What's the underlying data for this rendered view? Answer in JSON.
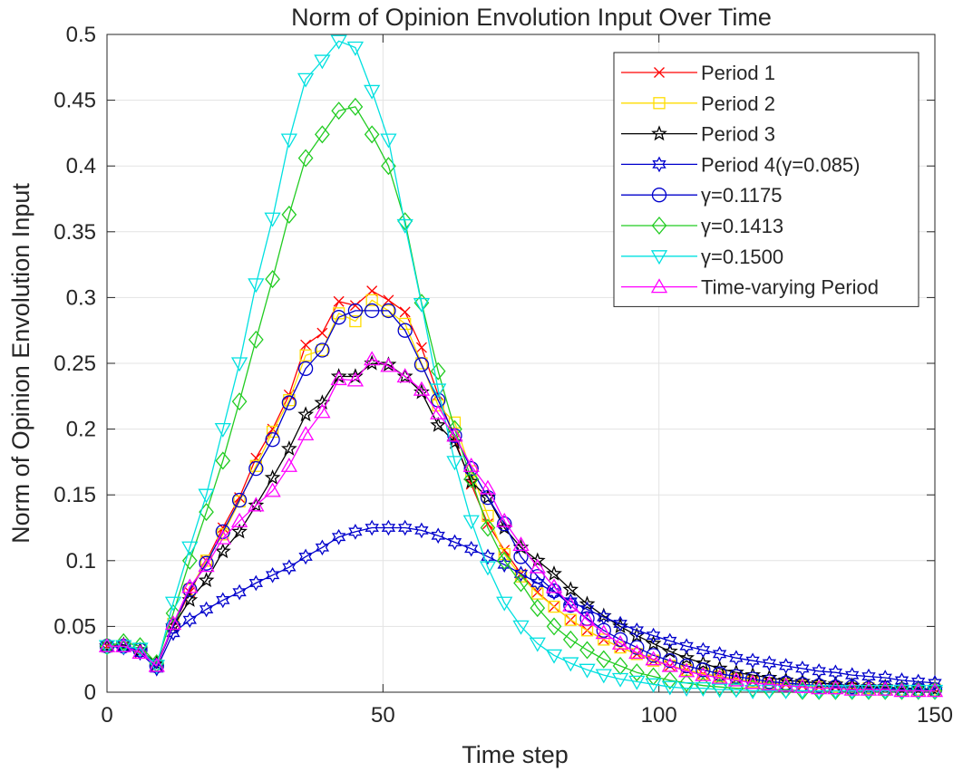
{
  "chart_data": {
    "type": "line",
    "title": "Norm of Opinion Envolution Input Over Time",
    "xlabel": "Time step",
    "ylabel": "Norm of Opinion Envolution Input",
    "xlim": [
      0,
      150
    ],
    "ylim": [
      0,
      0.5
    ],
    "xticks": [
      0,
      50,
      100,
      150
    ],
    "yticks": [
      0,
      0.05,
      0.1,
      0.15,
      0.2,
      0.25,
      0.3,
      0.35,
      0.4,
      0.45,
      0.5
    ],
    "grid": true,
    "legend_position": "top-right",
    "x_step": 3,
    "series": [
      {
        "name": "Period 1",
        "color": "#ff0000",
        "marker": "x",
        "values": [
          0.035,
          0.035,
          0.03,
          0.02,
          0.05,
          0.076,
          0.1,
          0.125,
          0.148,
          0.178,
          0.2,
          0.226,
          0.264,
          0.273,
          0.297,
          0.294,
          0.305,
          0.298,
          0.289,
          0.262,
          0.226,
          0.192,
          0.158,
          0.128,
          0.108,
          0.09,
          0.076,
          0.065,
          0.055,
          0.047,
          0.04,
          0.034,
          0.029,
          0.024,
          0.02,
          0.017,
          0.014,
          0.012,
          0.01,
          0.008,
          0.007,
          0.006,
          0.005,
          0.004,
          0.004,
          0.003,
          0.003,
          0.002,
          0.002,
          0.002,
          0.002
        ]
      },
      {
        "name": "Period 2",
        "color": "#ffdd00",
        "marker": "square",
        "values": [
          0.035,
          0.035,
          0.033,
          0.02,
          0.052,
          0.078,
          0.1,
          0.12,
          0.145,
          0.172,
          0.198,
          0.222,
          0.256,
          0.26,
          0.288,
          0.282,
          0.298,
          0.29,
          0.28,
          0.25,
          0.218,
          0.205,
          0.168,
          0.134,
          0.105,
          0.088,
          0.075,
          0.065,
          0.055,
          0.047,
          0.04,
          0.034,
          0.029,
          0.024,
          0.02,
          0.017,
          0.014,
          0.012,
          0.01,
          0.008,
          0.007,
          0.006,
          0.005,
          0.004,
          0.004,
          0.003,
          0.003,
          0.002,
          0.002,
          0.002,
          0.002
        ]
      },
      {
        "name": "Period 3",
        "color": "#000000",
        "marker": "star",
        "values": [
          0.035,
          0.036,
          0.032,
          0.022,
          0.05,
          0.07,
          0.085,
          0.107,
          0.122,
          0.142,
          0.163,
          0.185,
          0.211,
          0.22,
          0.24,
          0.24,
          0.25,
          0.249,
          0.24,
          0.228,
          0.203,
          0.19,
          0.16,
          0.148,
          0.125,
          0.11,
          0.1,
          0.09,
          0.078,
          0.067,
          0.058,
          0.05,
          0.043,
          0.037,
          0.031,
          0.026,
          0.022,
          0.018,
          0.015,
          0.013,
          0.011,
          0.009,
          0.008,
          0.007,
          0.006,
          0.005,
          0.004,
          0.004,
          0.003,
          0.003,
          0.002
        ]
      },
      {
        "name": "Period 4(γ=0.085)",
        "color": "#0000cc",
        "marker": "hexagram",
        "values": [
          0.035,
          0.034,
          0.03,
          0.018,
          0.045,
          0.055,
          0.063,
          0.07,
          0.076,
          0.083,
          0.089,
          0.095,
          0.103,
          0.11,
          0.118,
          0.122,
          0.125,
          0.125,
          0.125,
          0.123,
          0.119,
          0.114,
          0.109,
          0.103,
          0.097,
          0.09,
          0.083,
          0.076,
          0.069,
          0.063,
          0.057,
          0.052,
          0.047,
          0.043,
          0.039,
          0.035,
          0.032,
          0.029,
          0.026,
          0.024,
          0.022,
          0.02,
          0.018,
          0.016,
          0.015,
          0.013,
          0.012,
          0.011,
          0.009,
          0.008,
          0.007
        ]
      },
      {
        "name": "γ=0.1175",
        "color": "#0000cc",
        "marker": "circle",
        "values": [
          0.035,
          0.035,
          0.032,
          0.02,
          0.05,
          0.078,
          0.098,
          0.122,
          0.146,
          0.17,
          0.192,
          0.22,
          0.246,
          0.26,
          0.285,
          0.29,
          0.29,
          0.29,
          0.275,
          0.249,
          0.222,
          0.195,
          0.17,
          0.148,
          0.128,
          0.103,
          0.088,
          0.077,
          0.066,
          0.056,
          0.047,
          0.04,
          0.034,
          0.028,
          0.024,
          0.02,
          0.017,
          0.014,
          0.012,
          0.01,
          0.008,
          0.007,
          0.006,
          0.005,
          0.004,
          0.004,
          0.003,
          0.003,
          0.002,
          0.002,
          0.002
        ]
      },
      {
        "name": "γ=0.1413",
        "color": "#22cc22",
        "marker": "diamond",
        "values": [
          0.035,
          0.038,
          0.035,
          0.022,
          0.06,
          0.1,
          0.137,
          0.176,
          0.221,
          0.268,
          0.314,
          0.363,
          0.406,
          0.424,
          0.442,
          0.445,
          0.424,
          0.4,
          0.358,
          0.296,
          0.244,
          0.2,
          0.162,
          0.125,
          0.1,
          0.083,
          0.064,
          0.05,
          0.04,
          0.032,
          0.025,
          0.02,
          0.015,
          0.012,
          0.009,
          0.007,
          0.005,
          0.004,
          0.003,
          0.003,
          0.002,
          0.002,
          0.001,
          0.001,
          0.001,
          0.001,
          0.001,
          0.001,
          0.001,
          0.001,
          0.001
        ]
      },
      {
        "name": "γ=0.1500",
        "color": "#00e0e0",
        "marker": "triangle-down",
        "values": [
          0.035,
          0.035,
          0.033,
          0.02,
          0.068,
          0.11,
          0.15,
          0.2,
          0.25,
          0.31,
          0.36,
          0.42,
          0.466,
          0.48,
          0.495,
          0.49,
          0.457,
          0.42,
          0.355,
          0.295,
          0.23,
          0.175,
          0.13,
          0.095,
          0.068,
          0.05,
          0.037,
          0.028,
          0.022,
          0.017,
          0.013,
          0.01,
          0.008,
          0.006,
          0.004,
          0.003,
          0.003,
          0.002,
          0.002,
          0.001,
          0.001,
          0.001,
          0.001,
          0.001,
          0.001,
          0.001,
          0.001,
          0.001,
          0.001,
          0.001,
          0.001
        ]
      },
      {
        "name": "Time-varying Period",
        "color": "#ff00ff",
        "marker": "triangle-up",
        "values": [
          0.035,
          0.035,
          0.03,
          0.02,
          0.052,
          0.08,
          0.096,
          0.117,
          0.13,
          0.142,
          0.153,
          0.172,
          0.196,
          0.213,
          0.238,
          0.237,
          0.253,
          0.248,
          0.24,
          0.23,
          0.212,
          0.195,
          0.172,
          0.155,
          0.13,
          0.112,
          0.095,
          0.08,
          0.066,
          0.055,
          0.045,
          0.037,
          0.03,
          0.025,
          0.02,
          0.016,
          0.013,
          0.011,
          0.009,
          0.007,
          0.006,
          0.005,
          0.004,
          0.003,
          0.003,
          0.002,
          0.002,
          0.002,
          0.001,
          0.001,
          0.001
        ]
      }
    ]
  }
}
